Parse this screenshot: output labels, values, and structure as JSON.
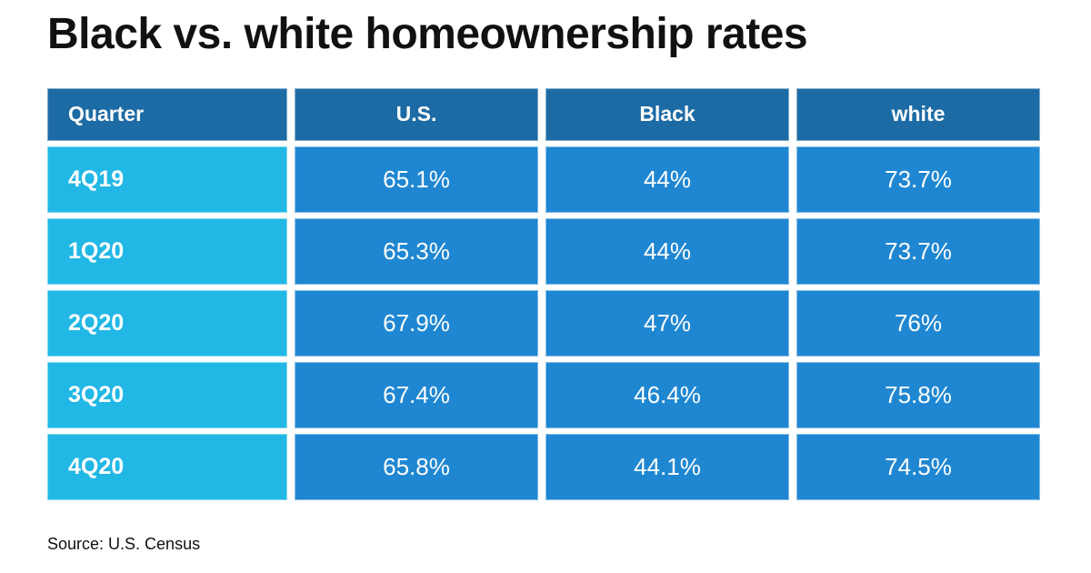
{
  "title": "Black vs. white homeownership rates",
  "source": "Source: U.S. Census",
  "colors": {
    "header_bg": "#1d6ba5",
    "quarter_bg": "#22b8e6",
    "value_bg": "#1f87d2",
    "text_light": "#ffffff",
    "title_color": "#111111",
    "background": "#ffffff"
  },
  "chart_data": {
    "type": "table",
    "title": "Black vs. white homeownership rates",
    "columns": [
      "Quarter",
      "U.S.",
      "Black",
      "white"
    ],
    "rows": [
      {
        "quarter": "4Q19",
        "us": "65.1%",
        "black": "44%",
        "white": "73.7%"
      },
      {
        "quarter": "1Q20",
        "us": "65.3%",
        "black": "44%",
        "white": "73.7%"
      },
      {
        "quarter": "2Q20",
        "us": "67.9%",
        "black": "47%",
        "white": "76%"
      },
      {
        "quarter": "3Q20",
        "us": "67.4%",
        "black": "46.4%",
        "white": "75.8%"
      },
      {
        "quarter": "4Q20",
        "us": "65.8%",
        "black": "44.1%",
        "white": "74.5%"
      }
    ],
    "source": "Source: U.S. Census",
    "legend": null,
    "grid": false
  }
}
